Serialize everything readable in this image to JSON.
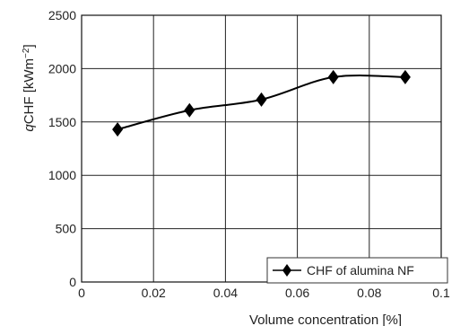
{
  "chart_data": {
    "type": "line",
    "title": "",
    "xlabel": "Volume concentration [%]",
    "ylabel": {
      "main": "CHF [kWm",
      "prefix": "q",
      "superscript": "−2",
      "suffix": "]"
    },
    "xlim": [
      0,
      0.1
    ],
    "ylim": [
      0,
      2500
    ],
    "x_ticks": [
      0,
      0.02,
      0.04,
      0.06,
      0.08,
      0.1
    ],
    "x_tick_labels": [
      "0",
      "0.02",
      "0.04",
      "0.06",
      "0.08",
      "0.1"
    ],
    "y_ticks": [
      0,
      500,
      1000,
      1500,
      2000,
      2500
    ],
    "y_tick_labels": [
      "0",
      "500",
      "1000",
      "1500",
      "2000",
      "2500"
    ],
    "grid": true,
    "legend_position": "bottom-right",
    "series": [
      {
        "name": "CHF of alumina NF",
        "marker": "diamond",
        "color": "#000000",
        "x": [
          0.01,
          0.03,
          0.05,
          0.07,
          0.09
        ],
        "y": [
          1430,
          1610,
          1710,
          1920,
          1920
        ]
      }
    ]
  }
}
